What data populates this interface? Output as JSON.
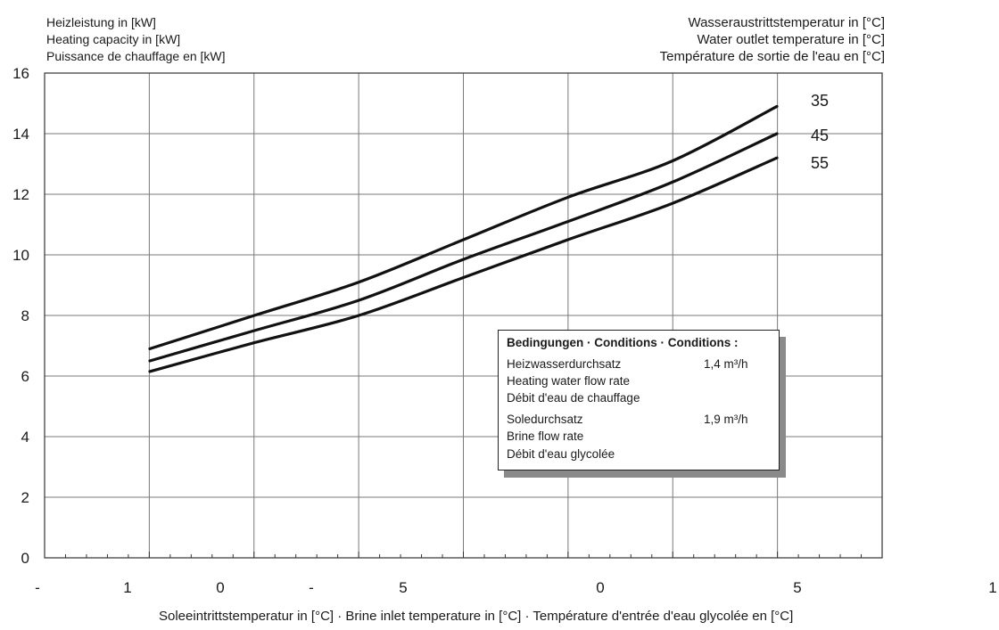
{
  "labels": {
    "left": [
      "Heizleistung in [kW]",
      "Heating capacity in [kW]",
      "Puissance de chauffage en [kW]"
    ],
    "right": [
      "Wasseraustrittstemperatur in [°C]",
      "Water outlet temperature in [°C]",
      "Température de sortie de l'eau en [°C]"
    ]
  },
  "conditions": {
    "title": "Bedingungen · Conditions · Conditions :",
    "heating_flow_de": "Heizwasserdurchsatz",
    "heating_flow_value": "1,4 m³/h",
    "heating_flow_en": "Heating water flow rate",
    "heating_flow_fr": "Débit d'eau de chauffage",
    "brine_flow_de": "Soledurchsatz",
    "brine_flow_value": "1,9 m³/h",
    "brine_flow_en": "Brine flow rate",
    "brine_flow_fr": "Débit d'eau glycolée"
  },
  "chart_data": {
    "type": "line",
    "xlabel": "Soleeintrittstemperatur in [°C] · Brine inlet temperature in [°C] · Température d'entrée d'eau glycolée en [°C]",
    "ylabel": "Heizleistung in [kW]",
    "xlim": [
      -20,
      20
    ],
    "ylim": [
      0,
      16
    ],
    "y_ticks": [
      0,
      2,
      4,
      6,
      8,
      10,
      12,
      14,
      16
    ],
    "x_tick_labels": [
      {
        "x": -20,
        "label": "-"
      },
      {
        "x": -16,
        "label": "1"
      },
      {
        "x": -11,
        "label": "0"
      },
      {
        "x": -7,
        "label": "-"
      },
      {
        "x": -2,
        "label": "5"
      },
      {
        "x": 7,
        "label": "0"
      },
      {
        "x": 16.5,
        "label": "5"
      },
      {
        "x": 25,
        "label": "1"
      }
    ],
    "grid": true,
    "series": [
      {
        "name": "35",
        "x": [
          -15,
          -10,
          -5,
          0,
          5,
          10,
          15
        ],
        "y": [
          6.9,
          8.0,
          9.1,
          10.5,
          11.9,
          13.1,
          14.9
        ]
      },
      {
        "name": "45",
        "x": [
          -15,
          -10,
          -5,
          0,
          5,
          10,
          15
        ],
        "y": [
          6.5,
          7.5,
          8.5,
          9.85,
          11.1,
          12.4,
          14.0
        ]
      },
      {
        "name": "55",
        "x": [
          -15,
          -10,
          -5,
          0,
          5,
          10,
          15
        ],
        "y": [
          6.15,
          7.1,
          8.0,
          9.25,
          10.5,
          11.7,
          13.2
        ]
      }
    ]
  }
}
